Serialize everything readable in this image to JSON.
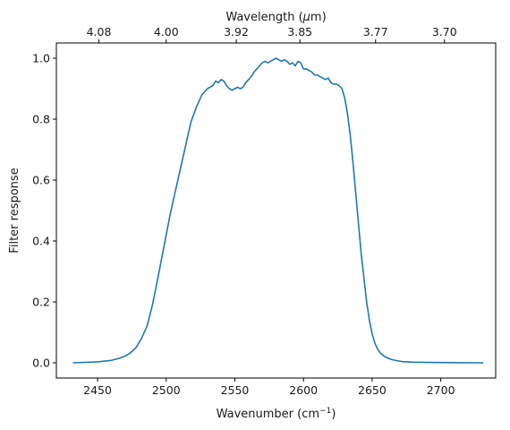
{
  "chart_data": {
    "type": "line",
    "xlabel": "Wavenumber (cm",
    "xlabel_sup": "−1",
    "xlabel_close": ")",
    "ylabel": "Filter response",
    "top_xlabel": "Wavelength (",
    "top_xlabel_mu": "μ",
    "top_xlabel_unit": "m)",
    "xlim": [
      2420,
      2740
    ],
    "ylim": [
      -0.05,
      1.05
    ],
    "x_ticks": [
      2450,
      2500,
      2550,
      2600,
      2650,
      2700
    ],
    "y_ticks": [
      0.0,
      0.2,
      0.4,
      0.6,
      0.8,
      1.0
    ],
    "top_ticks": [
      {
        "wavenumber": 2450.98,
        "label": "4.08"
      },
      {
        "wavenumber": 2500.0,
        "label": "4.00"
      },
      {
        "wavenumber": 2551.02,
        "label": "3.92"
      },
      {
        "wavenumber": 2597.4,
        "label": "3.85"
      },
      {
        "wavenumber": 2652.52,
        "label": "3.77"
      },
      {
        "wavenumber": 2702.7,
        "label": "3.70"
      }
    ],
    "line_color": "#1f77b4",
    "grid": false,
    "series": [
      {
        "x": [
          2432,
          2450,
          2460,
          2466,
          2470,
          2474,
          2478,
          2482,
          2486,
          2490,
          2494,
          2497,
          2500,
          2503,
          2506,
          2510,
          2514,
          2518,
          2522,
          2526,
          2530,
          2534,
          2536,
          2538,
          2540,
          2542,
          2544,
          2546,
          2548,
          2550,
          2552,
          2554,
          2556,
          2558,
          2560,
          2562,
          2564,
          2566,
          2568,
          2570,
          2572,
          2574,
          2576,
          2578,
          2580,
          2582,
          2584,
          2586,
          2588,
          2590,
          2592,
          2594,
          2596,
          2598,
          2600,
          2602,
          2604,
          2606,
          2608,
          2610,
          2612,
          2614,
          2616,
          2618,
          2620,
          2622,
          2624,
          2626,
          2628,
          2630,
          2632,
          2634,
          2636,
          2638,
          2640,
          2642,
          2644,
          2646,
          2648,
          2650,
          2652,
          2654,
          2656,
          2658,
          2660,
          2664,
          2668,
          2672,
          2680,
          2700,
          2731
        ],
        "y": [
          0.0,
          0.003,
          0.008,
          0.015,
          0.022,
          0.033,
          0.05,
          0.08,
          0.12,
          0.19,
          0.28,
          0.35,
          0.42,
          0.49,
          0.55,
          0.63,
          0.71,
          0.79,
          0.84,
          0.88,
          0.9,
          0.91,
          0.925,
          0.92,
          0.93,
          0.925,
          0.91,
          0.9,
          0.895,
          0.9,
          0.905,
          0.9,
          0.905,
          0.92,
          0.93,
          0.94,
          0.955,
          0.965,
          0.975,
          0.985,
          0.99,
          0.985,
          0.99,
          0.995,
          1.0,
          0.995,
          0.99,
          0.995,
          0.99,
          0.98,
          0.985,
          0.975,
          0.99,
          0.985,
          0.965,
          0.965,
          0.96,
          0.955,
          0.945,
          0.945,
          0.94,
          0.935,
          0.93,
          0.935,
          0.92,
          0.915,
          0.915,
          0.91,
          0.9,
          0.87,
          0.82,
          0.75,
          0.66,
          0.56,
          0.46,
          0.36,
          0.28,
          0.2,
          0.14,
          0.095,
          0.065,
          0.045,
          0.032,
          0.024,
          0.018,
          0.011,
          0.007,
          0.004,
          0.002,
          0.001,
          0.0
        ]
      }
    ]
  }
}
